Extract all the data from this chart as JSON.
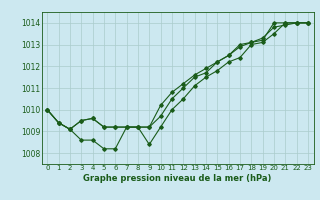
{
  "title": "Graphe pression niveau de la mer (hPa)",
  "bg_color": "#cce8f0",
  "grid_color": "#aacccc",
  "line_color": "#1a5c1a",
  "xlim": [
    -0.5,
    23.5
  ],
  "ylim": [
    1007.5,
    1014.5
  ],
  "yticks": [
    1008,
    1009,
    1010,
    1011,
    1012,
    1013,
    1014
  ],
  "xticks": [
    0,
    1,
    2,
    3,
    4,
    5,
    6,
    7,
    8,
    9,
    10,
    11,
    12,
    13,
    14,
    15,
    16,
    17,
    18,
    19,
    20,
    21,
    22,
    23
  ],
  "series1": [
    1010.0,
    1009.4,
    1009.1,
    1008.6,
    1008.6,
    1008.2,
    1008.2,
    1009.2,
    1009.2,
    1009.2,
    1009.7,
    1010.5,
    1011.0,
    1011.5,
    1011.7,
    1012.2,
    1012.5,
    1013.0,
    1013.1,
    1013.2,
    1014.0,
    1014.0,
    1014.0,
    1014.0
  ],
  "series2": [
    1010.0,
    1009.4,
    1009.1,
    1009.5,
    1009.6,
    1009.2,
    1009.2,
    1009.2,
    1009.2,
    1008.4,
    1009.2,
    1010.0,
    1010.5,
    1011.1,
    1011.5,
    1011.8,
    1012.2,
    1012.4,
    1013.0,
    1013.1,
    1013.5,
    1014.0,
    1014.0,
    1014.0
  ],
  "series3": [
    1010.0,
    1009.4,
    1009.1,
    1009.5,
    1009.6,
    1009.2,
    1009.2,
    1009.2,
    1009.2,
    1009.2,
    1010.2,
    1010.8,
    1011.2,
    1011.6,
    1011.9,
    1012.2,
    1012.5,
    1012.9,
    1013.1,
    1013.3,
    1013.8,
    1013.9,
    1014.0,
    1014.0
  ],
  "tick_fontsize": 5.0,
  "label_fontsize": 5.5,
  "title_fontsize": 6.0
}
